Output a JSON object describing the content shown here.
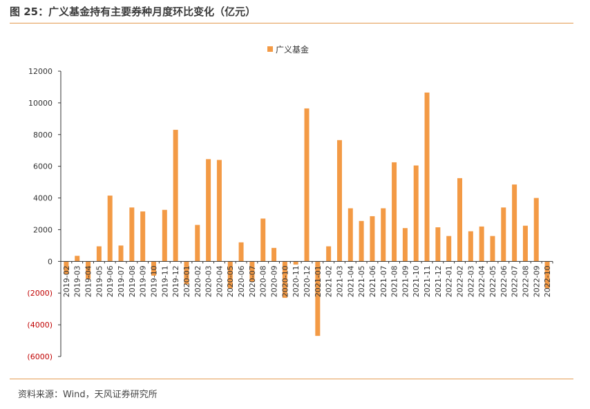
{
  "figure": {
    "title": "图 25：广义基金持有主要券种月度环比变化（亿元）",
    "source": "资料来源：Wind，天风证券研究所"
  },
  "colors": {
    "bar": "#f39a45",
    "negative_label": "#c00000",
    "rule": "#e39a4f"
  },
  "chart_data": {
    "type": "bar",
    "title": "",
    "xlabel": "",
    "ylabel": "",
    "ylim": [
      -6000,
      12000
    ],
    "yticks": [
      12000,
      10000,
      8000,
      6000,
      4000,
      2000,
      0,
      -2000,
      -4000,
      -6000
    ],
    "ytick_labels": [
      "12000",
      "10000",
      "8000",
      "6000",
      "4000",
      "2000",
      "0",
      "(2000)",
      "(4000)",
      "(6000)"
    ],
    "grid": false,
    "legend": "top-center",
    "categories": [
      "2019-02",
      "2019-03",
      "2019-04",
      "2019-05",
      "2019-06",
      "2019-07",
      "2019-08",
      "2019-09",
      "2019-10",
      "2019-11",
      "2019-12",
      "2020-01",
      "2020-02",
      "2020-03",
      "2020-04",
      "2020-05",
      "2020-06",
      "2020-07",
      "2020-08",
      "2020-09",
      "2020-10",
      "2020-11",
      "2020-12",
      "2021-01",
      "2021-02",
      "2021-03",
      "2021-04",
      "2021-05",
      "2021-06",
      "2021-07",
      "2021-08",
      "2021-09",
      "2021-10",
      "2021-11",
      "2021-12",
      "2022-01",
      "2022-02",
      "2022-03",
      "2022-04",
      "2022-05",
      "2022-06",
      "2022-07",
      "2022-08",
      "2022-09",
      "2022-10"
    ],
    "series": [
      {
        "name": "广义基金",
        "values": [
          -800,
          350,
          -1100,
          950,
          4150,
          1000,
          3400,
          3150,
          -900,
          3250,
          8300,
          -1450,
          2300,
          6450,
          6400,
          -1700,
          1200,
          -1300,
          2700,
          850,
          -2300,
          -200,
          9650,
          -4700,
          950,
          7650,
          3350,
          2550,
          2850,
          3350,
          6250,
          2100,
          6050,
          10650,
          2150,
          1600,
          5250,
          1900,
          2200,
          1600,
          3400,
          4850,
          2250,
          4000,
          -1700
        ]
      }
    ]
  }
}
